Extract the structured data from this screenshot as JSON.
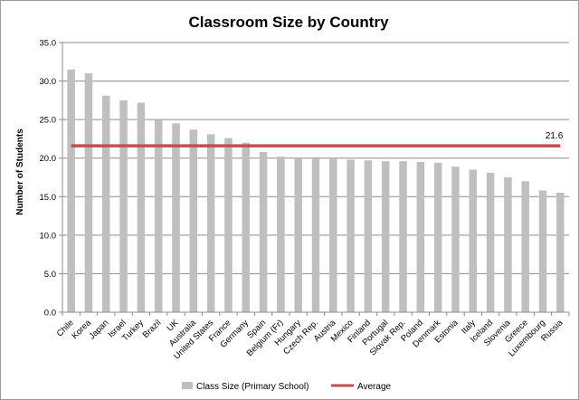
{
  "chart_data": {
    "type": "bar",
    "title": "Classroom Size by Country",
    "xlabel": "",
    "ylabel": "Number of Students",
    "ylim": [
      0,
      35
    ],
    "yticks": [
      "0.0",
      "5.0",
      "10.0",
      "15.0",
      "20.0",
      "25.0",
      "30.0",
      "35.0"
    ],
    "grid": true,
    "legend_position": "bottom",
    "categories": [
      "Chile",
      "Korea",
      "Japan",
      "Israel",
      "Turkey",
      "Brazil",
      "UK",
      "Australia",
      "United States",
      "France",
      "Germany",
      "Spain",
      "Belgium (Fr)",
      "Hungary",
      "Czech Rep.",
      "Austria",
      "Mexico",
      "Finland",
      "Portugal",
      "Slovak Rep.",
      "Poland",
      "Denmark",
      "Estonia",
      "Italy",
      "Iceland",
      "Slovenia",
      "Greece",
      "Luxembourg",
      "Russia"
    ],
    "series": [
      {
        "name": "Class Size (Primary School)",
        "type": "bar",
        "color": "#bfbfbf",
        "values": [
          31.5,
          31.0,
          28.1,
          27.5,
          27.2,
          24.9,
          24.5,
          23.7,
          23.1,
          22.6,
          22.0,
          20.8,
          20.2,
          19.9,
          19.9,
          19.9,
          19.8,
          19.7,
          19.6,
          19.6,
          19.5,
          19.4,
          18.9,
          18.5,
          18.1,
          17.5,
          17.0,
          15.8,
          15.5
        ]
      },
      {
        "name": "Average",
        "type": "line",
        "color": "#c0504d",
        "value": 21.6,
        "label": "21.6"
      }
    ]
  }
}
